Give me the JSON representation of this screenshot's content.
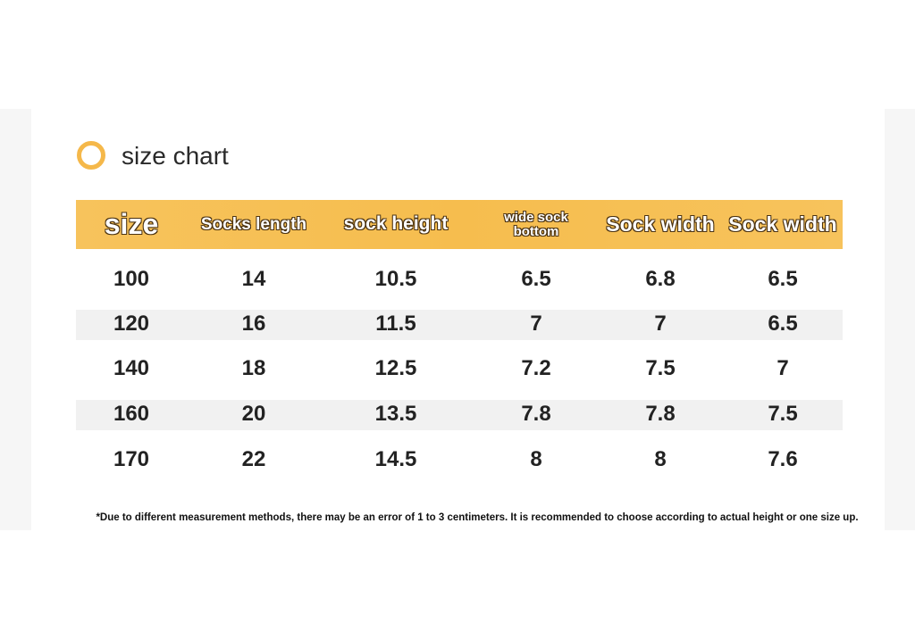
{
  "header": {
    "title": "size chart"
  },
  "table": {
    "headers": [
      "size",
      "Socks length",
      "sock height",
      "wide sock bottom",
      "Sock width",
      "Sock width"
    ],
    "rows": [
      [
        100,
        14,
        10.5,
        6.5,
        6.8,
        6.5
      ],
      [
        120,
        16,
        11.5,
        7,
        7,
        6.5
      ],
      [
        140,
        18,
        12.5,
        7.2,
        7.5,
        7
      ],
      [
        160,
        20,
        13.5,
        7.8,
        7.8,
        7.5
      ],
      [
        170,
        22,
        14.5,
        8,
        8,
        7.6
      ]
    ]
  },
  "note": "*Due to different measurement methods, there may be an error of 1 to 3 centimeters. It is recommended to choose according to actual height or one size up."
}
